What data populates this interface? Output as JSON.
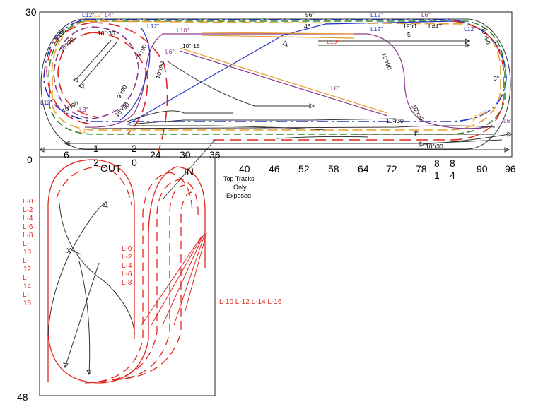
{
  "edge": {
    "left_top": "30",
    "left_mid": "0",
    "left_bottom": "48"
  },
  "top_scale": [
    "6",
    "1",
    "2",
    "24",
    "30",
    "36"
  ],
  "top_scale_extra": [
    "2",
    "OUT",
    "0",
    "IN"
  ],
  "bottom_scale": [
    "40",
    "46",
    "52",
    "58",
    "64",
    "72",
    "78",
    "90",
    "96"
  ],
  "stacked_ticks": [
    [
      "8",
      "1"
    ],
    [
      "8",
      "4"
    ]
  ],
  "track_labels": {
    "top_row": [
      "L12\"",
      "L2\"",
      "L4\""
    ],
    "radius": [
      "10\"r30",
      "9\"r90",
      "10\"r90",
      "10\"r15",
      "9\"r90",
      "10\"r90",
      "9\"r90",
      "10\"r90",
      "10\"r90",
      "10\"r90",
      "10\"r30",
      "10\"r90",
      "10\"r30",
      "10\"r90",
      "10\"r90"
    ],
    "lengths": [
      "L12\"",
      "L12\"",
      "L10\"",
      "L8\"",
      "L10\"",
      "L12\"",
      "L6\"",
      "L12\"",
      "L12\"",
      "L3\"",
      "L1\"",
      "L6\"",
      "L6\""
    ],
    "misc": [
      "56\"",
      "46",
      "19\"r1",
      "L#4T",
      "5",
      "3\"",
      "4\"",
      "X"
    ]
  },
  "callout": [
    "Top Tracks",
    "Only",
    "Exposed"
  ],
  "level_left": [
    "L-0",
    "L-2",
    "L-4",
    "L-6",
    "L-8",
    "L-",
    "10",
    "L-",
    "12",
    "L-",
    "14",
    "L-",
    "16"
  ],
  "level_mid": [
    "L-0",
    "L-2",
    "L-4",
    "L-6",
    "L-8"
  ],
  "level_right": "L-10 L-12  L-14  L-16",
  "colors": {
    "red": "#e0261f",
    "blue": "#2233cc",
    "purple": "#8a3a8a",
    "orange": "#e8a030",
    "green": "#2f8a2f",
    "dark": "#222222"
  }
}
